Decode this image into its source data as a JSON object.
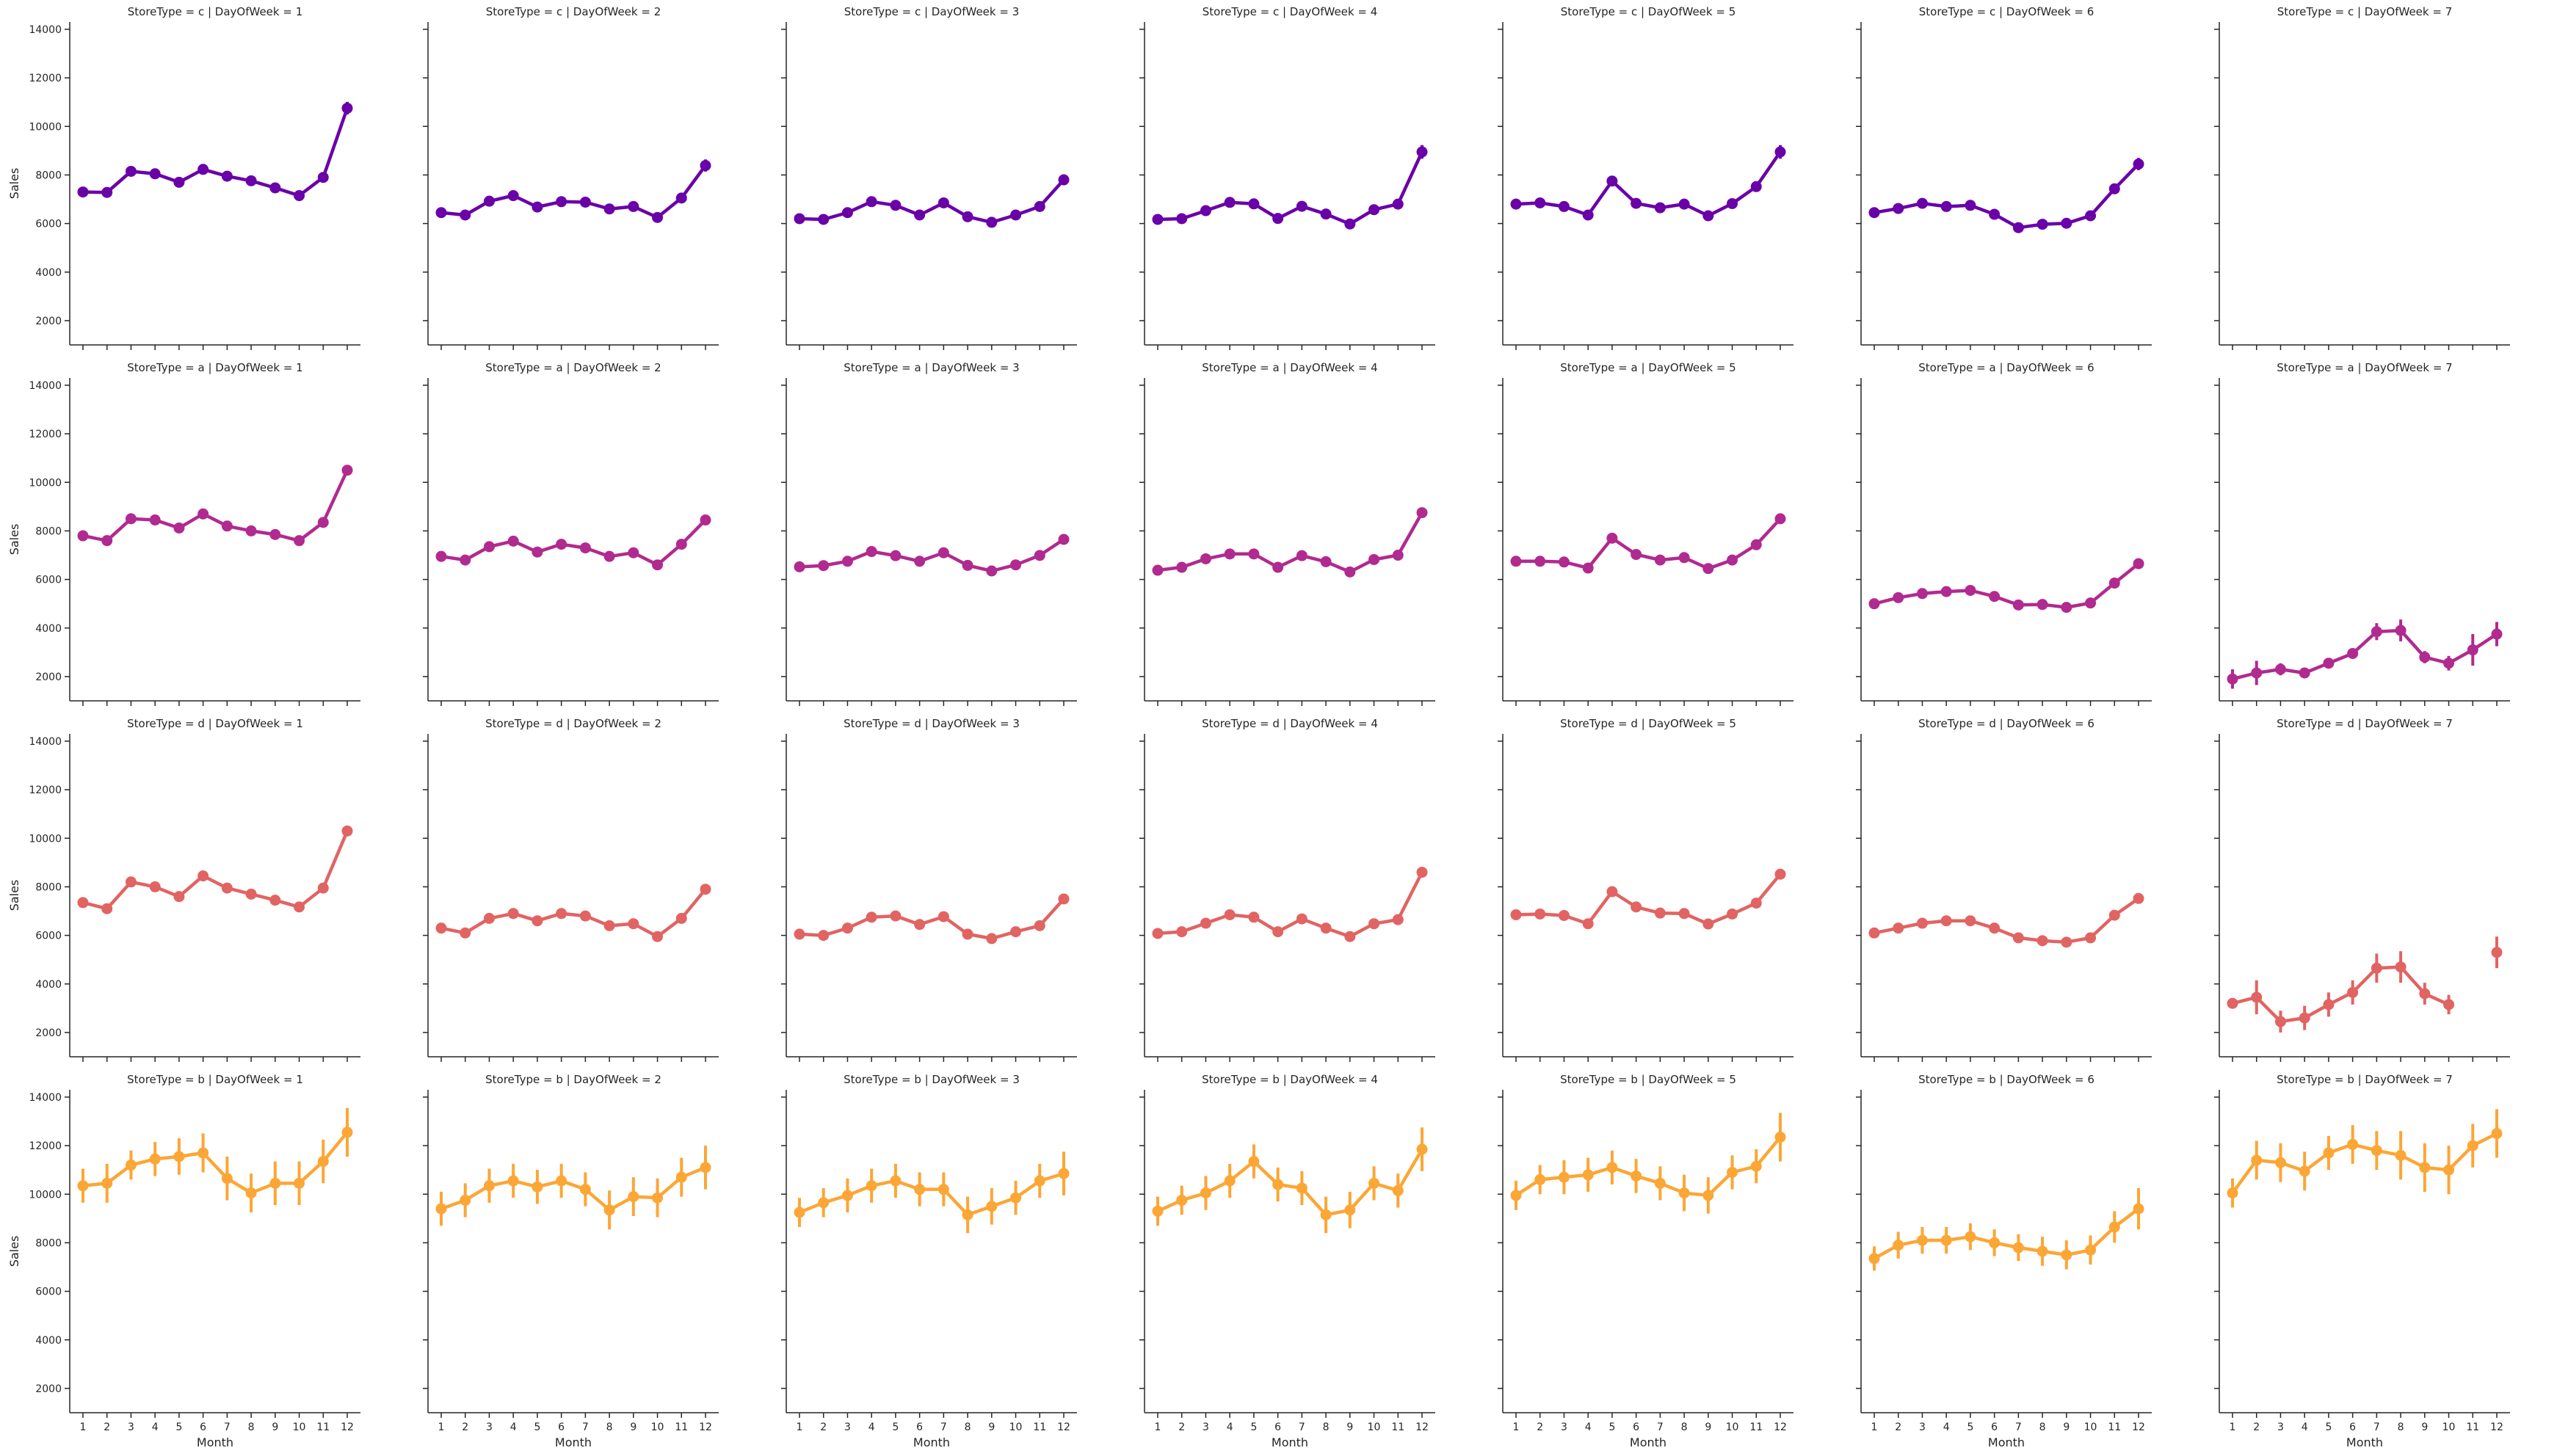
{
  "chart_data": {
    "type": "line",
    "xlabel": "Month",
    "ylabel": "Sales",
    "ylim": [
      1000,
      14300
    ],
    "yticks": [
      2000,
      4000,
      6000,
      8000,
      10000,
      12000,
      14000
    ],
    "xticks": [
      1,
      2,
      3,
      4,
      5,
      6,
      7,
      8,
      9,
      10,
      11,
      12
    ],
    "rows": [
      {
        "store_type": "c",
        "color": "#6a00a8"
      },
      {
        "store_type": "a",
        "color": "#b12a90"
      },
      {
        "store_type": "d",
        "color": "#e16462"
      },
      {
        "store_type": "b",
        "color": "#fca636"
      }
    ],
    "panels": [
      {
        "title": "StoreType = c | DayOfWeek = 1",
        "values": [
          7300,
          7280,
          8150,
          8050,
          7700,
          8230,
          7950,
          7760,
          7470,
          7150,
          7900,
          10750
        ],
        "err": [
          150,
          150,
          150,
          150,
          150,
          150,
          150,
          150,
          150,
          150,
          150,
          260
        ]
      },
      {
        "title": "StoreType = c | DayOfWeek = 2",
        "values": [
          6450,
          6350,
          6920,
          7150,
          6680,
          6900,
          6880,
          6600,
          6700,
          6250,
          7050,
          8390
        ],
        "err": [
          120,
          120,
          120,
          120,
          120,
          120,
          120,
          120,
          120,
          120,
          120,
          250
        ]
      },
      {
        "title": "StoreType = c | DayOfWeek = 3",
        "values": [
          6200,
          6170,
          6450,
          6900,
          6750,
          6350,
          6850,
          6280,
          6050,
          6350,
          6700,
          7800
        ],
        "err": [
          120,
          120,
          120,
          120,
          120,
          120,
          120,
          120,
          120,
          120,
          120,
          220
        ]
      },
      {
        "title": "StoreType = c | DayOfWeek = 4",
        "values": [
          6170,
          6200,
          6530,
          6870,
          6810,
          6210,
          6710,
          6390,
          5980,
          6570,
          6800,
          8950
        ],
        "err": [
          120,
          120,
          120,
          120,
          120,
          120,
          120,
          120,
          120,
          120,
          120,
          280
        ]
      },
      {
        "title": "StoreType = c | DayOfWeek = 5",
        "values": [
          6800,
          6850,
          6700,
          6350,
          7750,
          6830,
          6650,
          6800,
          6320,
          6820,
          7520,
          8950
        ],
        "err": [
          120,
          120,
          120,
          120,
          150,
          120,
          120,
          120,
          120,
          120,
          150,
          280
        ]
      },
      {
        "title": "StoreType = c | DayOfWeek = 6",
        "values": [
          6450,
          6620,
          6830,
          6700,
          6750,
          6380,
          5830,
          5970,
          6010,
          6320,
          7430,
          8450
        ],
        "err": [
          120,
          120,
          120,
          120,
          120,
          120,
          120,
          120,
          120,
          120,
          150,
          250
        ]
      },
      {
        "title": "StoreType = c | DayOfWeek = 7",
        "values": [],
        "err": []
      },
      {
        "title": "StoreType = a | DayOfWeek = 1",
        "values": [
          7800,
          7600,
          8500,
          8450,
          8120,
          8700,
          8200,
          8000,
          7850,
          7600,
          8350,
          10500
        ],
        "err": [
          60,
          60,
          60,
          60,
          60,
          60,
          60,
          60,
          60,
          60,
          60,
          100
        ]
      },
      {
        "title": "StoreType = a | DayOfWeek = 2",
        "values": [
          6950,
          6800,
          7350,
          7580,
          7130,
          7450,
          7300,
          6950,
          7100,
          6600,
          7450,
          8450
        ],
        "err": [
          60,
          60,
          60,
          60,
          60,
          60,
          60,
          60,
          60,
          60,
          60,
          90
        ]
      },
      {
        "title": "StoreType = a | DayOfWeek = 3",
        "values": [
          6520,
          6570,
          6750,
          7150,
          6980,
          6750,
          7100,
          6580,
          6350,
          6600,
          6990,
          7650
        ],
        "err": [
          60,
          60,
          60,
          60,
          60,
          60,
          60,
          60,
          60,
          60,
          60,
          90
        ]
      },
      {
        "title": "StoreType = a | DayOfWeek = 4",
        "values": [
          6380,
          6500,
          6850,
          7050,
          7050,
          6500,
          6980,
          6730,
          6310,
          6820,
          7000,
          8750
        ],
        "err": [
          60,
          60,
          60,
          60,
          60,
          60,
          60,
          60,
          60,
          60,
          60,
          100
        ]
      },
      {
        "title": "StoreType = a | DayOfWeek = 5",
        "values": [
          6750,
          6750,
          6720,
          6470,
          7700,
          7030,
          6800,
          6900,
          6450,
          6800,
          7430,
          8500
        ],
        "err": [
          60,
          60,
          60,
          60,
          70,
          60,
          60,
          60,
          60,
          60,
          60,
          100
        ]
      },
      {
        "title": "StoreType = a | DayOfWeek = 6",
        "values": [
          5000,
          5250,
          5420,
          5500,
          5550,
          5300,
          4950,
          4970,
          4850,
          5030,
          5850,
          6650
        ],
        "err": [
          50,
          50,
          50,
          50,
          50,
          50,
          50,
          50,
          50,
          50,
          60,
          80
        ]
      },
      {
        "title": "StoreType = a | DayOfWeek = 7",
        "values": [
          1900,
          2150,
          2300,
          2150,
          2550,
          2950,
          3850,
          3900,
          2800,
          2550,
          3100,
          3750
        ],
        "err": [
          400,
          500,
          250,
          200,
          180,
          200,
          350,
          450,
          250,
          300,
          650,
          500
        ]
      },
      {
        "title": "StoreType = d | DayOfWeek = 1",
        "values": [
          7350,
          7100,
          8200,
          8000,
          7600,
          8450,
          7950,
          7700,
          7450,
          7170,
          7950,
          10300
        ],
        "err": [
          70,
          70,
          70,
          70,
          70,
          70,
          70,
          70,
          70,
          70,
          70,
          120
        ]
      },
      {
        "title": "StoreType = d | DayOfWeek = 2",
        "values": [
          6300,
          6100,
          6700,
          6900,
          6600,
          6900,
          6800,
          6400,
          6480,
          5950,
          6700,
          7900
        ],
        "err": [
          70,
          70,
          70,
          70,
          70,
          70,
          70,
          70,
          70,
          70,
          70,
          110
        ]
      },
      {
        "title": "StoreType = d | DayOfWeek = 3",
        "values": [
          6050,
          6000,
          6300,
          6750,
          6800,
          6450,
          6770,
          6050,
          5870,
          6150,
          6400,
          7500
        ],
        "err": [
          70,
          70,
          70,
          70,
          70,
          70,
          70,
          70,
          70,
          70,
          70,
          110
        ]
      },
      {
        "title": "StoreType = d | DayOfWeek = 4",
        "values": [
          6080,
          6150,
          6500,
          6850,
          6750,
          6150,
          6680,
          6300,
          5950,
          6480,
          6650,
          8600
        ],
        "err": [
          70,
          70,
          70,
          70,
          70,
          70,
          70,
          70,
          70,
          70,
          70,
          110
        ]
      },
      {
        "title": "StoreType = d | DayOfWeek = 5",
        "values": [
          6850,
          6880,
          6820,
          6480,
          7800,
          7170,
          6920,
          6900,
          6470,
          6880,
          7330,
          8520
        ],
        "err": [
          70,
          70,
          70,
          70,
          80,
          70,
          70,
          70,
          70,
          70,
          70,
          110
        ]
      },
      {
        "title": "StoreType = d | DayOfWeek = 6",
        "values": [
          6100,
          6300,
          6500,
          6600,
          6600,
          6300,
          5900,
          5780,
          5720,
          5900,
          6830,
          7520
        ],
        "err": [
          60,
          60,
          60,
          60,
          60,
          60,
          60,
          60,
          60,
          60,
          70,
          90
        ]
      },
      {
        "title": "StoreType = d | DayOfWeek = 7",
        "values": [
          3200,
          3450,
          2450,
          2600,
          3150,
          3650,
          4650,
          4700,
          3600,
          3150,
          null,
          5300
        ],
        "err": [
          200,
          700,
          450,
          500,
          500,
          500,
          600,
          650,
          450,
          400,
          null,
          650
        ]
      },
      {
        "title": "StoreType = b | DayOfWeek = 1",
        "values": [
          10350,
          10450,
          11200,
          11450,
          11550,
          11700,
          10650,
          10050,
          10450,
          10450,
          11350,
          12550
        ],
        "err": [
          700,
          800,
          600,
          700,
          750,
          800,
          900,
          800,
          900,
          900,
          900,
          1000
        ]
      },
      {
        "title": "StoreType = b | DayOfWeek = 2",
        "values": [
          9400,
          9750,
          10350,
          10550,
          10300,
          10550,
          10200,
          9350,
          9900,
          9850,
          10700,
          11100
        ],
        "err": [
          700,
          700,
          700,
          700,
          700,
          700,
          700,
          800,
          800,
          800,
          800,
          900
        ]
      },
      {
        "title": "StoreType = b | DayOfWeek = 3",
        "values": [
          9250,
          9650,
          9950,
          10350,
          10550,
          10200,
          10200,
          9150,
          9500,
          9850,
          10550,
          10850
        ],
        "err": [
          600,
          600,
          700,
          700,
          700,
          700,
          700,
          750,
          750,
          700,
          700,
          900
        ]
      },
      {
        "title": "StoreType = b | DayOfWeek = 4",
        "values": [
          9300,
          9750,
          10050,
          10550,
          11350,
          10400,
          10250,
          9150,
          9350,
          10450,
          10150,
          11850
        ],
        "err": [
          600,
          600,
          700,
          700,
          700,
          700,
          700,
          750,
          750,
          700,
          700,
          900
        ]
      },
      {
        "title": "StoreType = b | DayOfWeek = 5",
        "values": [
          9950,
          10600,
          10700,
          10800,
          11100,
          10750,
          10450,
          10050,
          9950,
          10900,
          11150,
          12350
        ],
        "err": [
          600,
          600,
          700,
          700,
          700,
          700,
          700,
          750,
          750,
          700,
          700,
          1000
        ]
      },
      {
        "title": "StoreType = b | DayOfWeek = 6",
        "values": [
          7350,
          7900,
          8100,
          8100,
          8250,
          8000,
          7800,
          7650,
          7500,
          7700,
          8650,
          9400
        ],
        "err": [
          500,
          550,
          550,
          550,
          550,
          550,
          550,
          600,
          600,
          600,
          650,
          850
        ]
      },
      {
        "title": "StoreType = b | DayOfWeek = 7",
        "values": [
          10050,
          11400,
          11300,
          10950,
          11700,
          12050,
          11800,
          11600,
          11100,
          11000,
          12000,
          12500
        ],
        "err": [
          600,
          800,
          800,
          800,
          700,
          800,
          800,
          1000,
          1000,
          1000,
          900,
          1000
        ]
      }
    ]
  }
}
